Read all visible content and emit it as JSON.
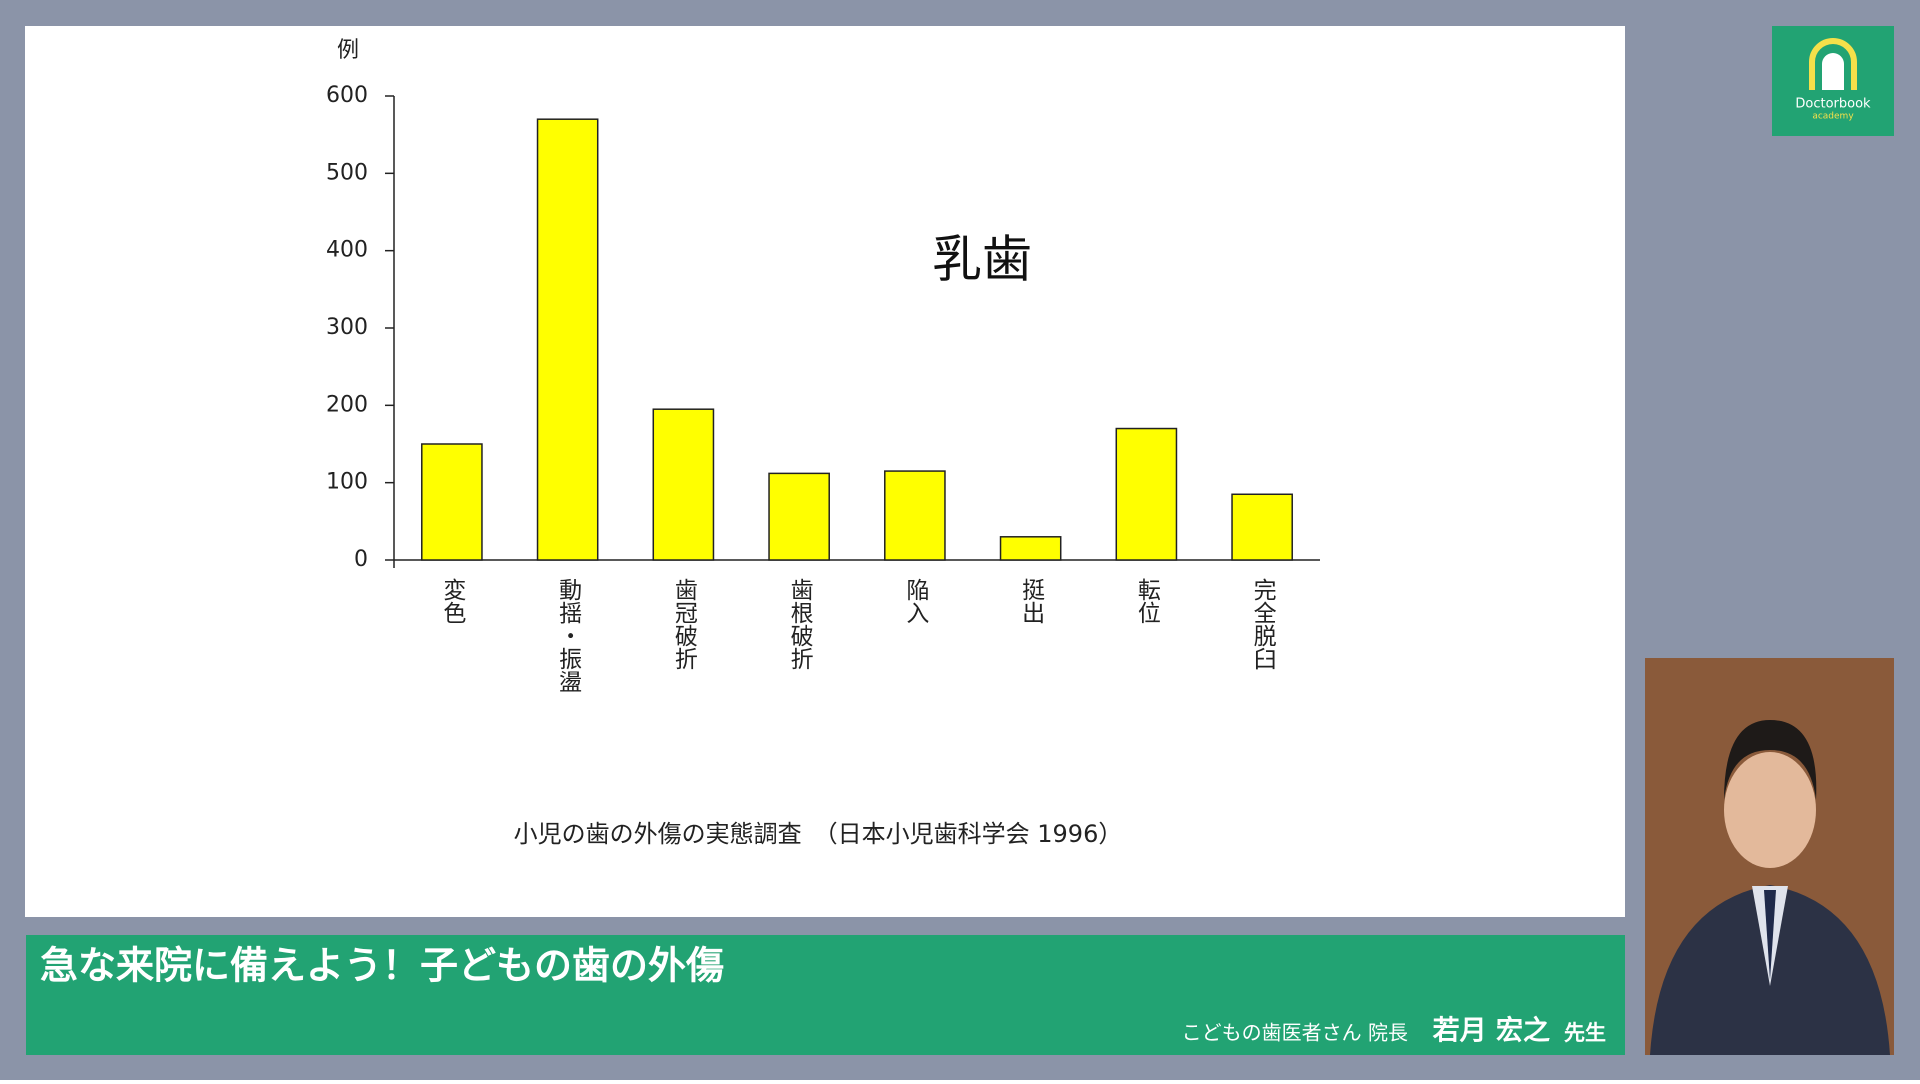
{
  "chart_data": {
    "type": "bar",
    "annotation": "乳歯",
    "ylabel": "例",
    "categories": [
      "変色",
      "動揺・振盪",
      "歯冠破折",
      "歯根破折",
      "陥入",
      "挺出",
      "転位",
      "完全脱臼"
    ],
    "values": [
      150,
      570,
      195,
      112,
      115,
      30,
      170,
      85
    ],
    "color": "#ffff00",
    "ylim": [
      0,
      600
    ],
    "yticks": [
      0,
      100,
      200,
      300,
      400,
      500,
      600
    ],
    "source": "小児の歯の外傷の実態調査　（日本小児歯科学会 1996）"
  },
  "banner": {
    "title": "急な来院に備えよう！子どもの歯の外傷",
    "affiliation": "こどもの歯医者さん 院長",
    "presenter": "若月 宏之",
    "honorific": "先生"
  },
  "logo": {
    "name": "Doctorbook",
    "sub": "academy"
  }
}
